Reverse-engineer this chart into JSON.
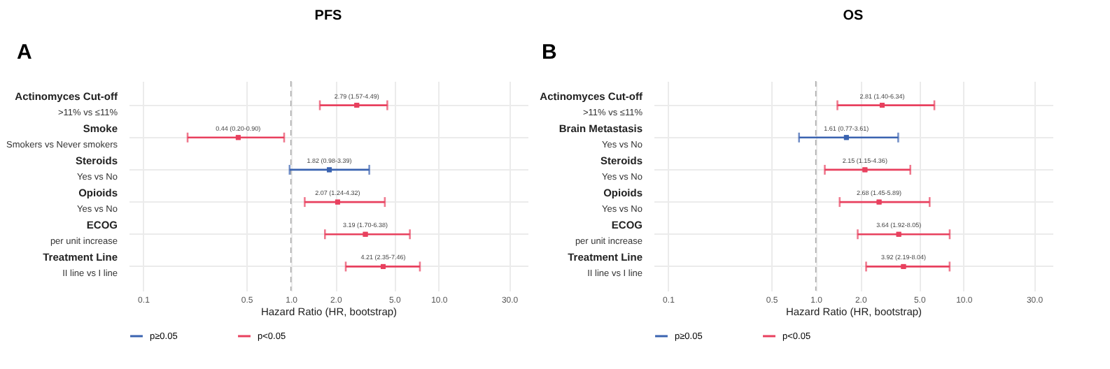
{
  "chart_data": [
    {
      "type": "scatter",
      "orientation": "horizontal",
      "title": "PFS",
      "annotations": [
        "A"
      ],
      "xlabel": "Hazard Ratio (HR, bootstrap)",
      "log": "x",
      "grid": true,
      "legend": "bottom",
      "marker": "square",
      "categories": [
        "Actinomyces Cut-off\n>11% vs ≤11%",
        "Smoke\nSmokers vs Never smokers",
        "Steroids\nYes vs No",
        "Opioids\nYes vs No",
        "ECOG\nper unit increase",
        "Treatment Line\nII line vs I line"
      ],
      "xlim": [
        0.08,
        40
      ],
      "xticks": [
        {
          "value": 0.1,
          "label": "0.1"
        },
        {
          "value": 0.5,
          "label": "0.5"
        },
        {
          "value": 1,
          "label": "1.0"
        },
        {
          "value": 2,
          "label": "2.0"
        },
        {
          "value": 5,
          "label": "5.0"
        },
        {
          "value": 10,
          "label": "10.0"
        },
        {
          "value": 30,
          "label": "30.0"
        }
      ],
      "ref_lines": [
        {
          "axis": "x",
          "value": 1,
          "line_style": "dashed",
          "color": "#aaaaaa"
        }
      ],
      "series": [
        {
          "name": "p≥0.05",
          "color": "#3a63b0",
          "values": [
            null,
            null,
            1.82,
            null,
            null,
            null
          ],
          "errors": [
            null,
            null,
            [
              0.98,
              3.39
            ],
            null,
            null,
            null
          ],
          "value_labels": [
            null,
            null,
            "1.82 (0.98-3.39)",
            null,
            null,
            null
          ]
        },
        {
          "name": "p<0.05",
          "color": "#e8405e",
          "values": [
            2.79,
            0.44,
            null,
            2.07,
            3.19,
            4.21
          ],
          "errors": [
            [
              1.57,
              4.49
            ],
            [
              0.2,
              0.9
            ],
            null,
            [
              1.24,
              4.32
            ],
            [
              1.7,
              6.38
            ],
            [
              2.35,
              7.46
            ]
          ],
          "value_labels": [
            "2.79 (1.57-4.49)",
            "0.44 (0.20-0.90)",
            null,
            "2.07 (1.24-4.32)",
            "3.19 (1.70-6.38)",
            "4.21 (2.35-7.46)"
          ]
        }
      ]
    },
    {
      "type": "scatter",
      "orientation": "horizontal",
      "title": "OS",
      "annotations": [
        "B"
      ],
      "xlabel": "Hazard Ratio (HR, bootstrap)",
      "log": "x",
      "grid": true,
      "legend": "bottom",
      "marker": "square",
      "categories": [
        "Actinomyces Cut-off\n>11% vs ≤11%",
        "Brain Metastasis\nYes vs No",
        "Steroids\nYes vs No",
        "Opioids\nYes vs No",
        "ECOG\nper unit increase",
        "Treatment Line\nII line vs I line"
      ],
      "xlim": [
        0.08,
        40
      ],
      "xticks": [
        {
          "value": 0.1,
          "label": "0.1"
        },
        {
          "value": 0.5,
          "label": "0.5"
        },
        {
          "value": 1,
          "label": "1.0"
        },
        {
          "value": 2,
          "label": "2.0"
        },
        {
          "value": 5,
          "label": "5.0"
        },
        {
          "value": 10,
          "label": "10.0"
        },
        {
          "value": 30,
          "label": "30.0"
        }
      ],
      "ref_lines": [
        {
          "axis": "x",
          "value": 1,
          "line_style": "dashed",
          "color": "#aaaaaa"
        }
      ],
      "series": [
        {
          "name": "p≥0.05",
          "color": "#3a63b0",
          "values": [
            null,
            1.61,
            null,
            null,
            null,
            null
          ],
          "errors": [
            null,
            [
              0.77,
              3.61
            ],
            null,
            null,
            null,
            null
          ],
          "value_labels": [
            null,
            "1.61 (0.77-3.61)",
            null,
            null,
            null,
            null
          ]
        },
        {
          "name": "p<0.05",
          "color": "#e8405e",
          "values": [
            2.81,
            null,
            2.15,
            2.68,
            3.64,
            3.92
          ],
          "errors": [
            [
              1.4,
              6.34
            ],
            null,
            [
              1.15,
              4.36
            ],
            [
              1.45,
              5.89
            ],
            [
              1.92,
              8.05
            ],
            [
              2.19,
              8.04
            ]
          ],
          "value_labels": [
            "2.81 (1.40-6.34)",
            null,
            "2.15 (1.15-4.36)",
            "2.68 (1.45-5.89)",
            "3.64 (1.92-8.05)",
            "3.92 (2.19-8.04)"
          ]
        }
      ]
    }
  ]
}
